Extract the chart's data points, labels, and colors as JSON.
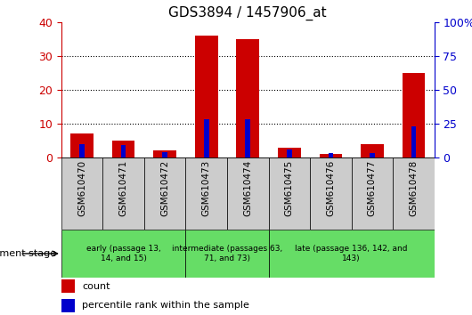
{
  "title": "GDS3894 / 1457906_at",
  "categories": [
    "GSM610470",
    "GSM610471",
    "GSM610472",
    "GSM610473",
    "GSM610474",
    "GSM610475",
    "GSM610476",
    "GSM610477",
    "GSM610478"
  ],
  "count_values": [
    7,
    5,
    2,
    36,
    35,
    3,
    1,
    4,
    25
  ],
  "percentile_values": [
    10,
    9,
    4,
    28,
    28,
    6,
    3,
    3,
    23
  ],
  "left_ylim": [
    0,
    40
  ],
  "right_ylim": [
    0,
    100
  ],
  "left_yticks": [
    0,
    10,
    20,
    30,
    40
  ],
  "right_yticks": [
    0,
    25,
    50,
    75,
    100
  ],
  "right_yticklabels": [
    "0",
    "25",
    "50",
    "75",
    "100%"
  ],
  "count_color": "#cc0000",
  "percentile_color": "#0000cc",
  "bar_bg_color": "#cccccc",
  "group_color": "#66dd66",
  "groups": [
    {
      "label": "early (passage 13,\n14, and 15)",
      "start": 0,
      "end": 2
    },
    {
      "label": "intermediate (passages 63,\n71, and 73)",
      "start": 3,
      "end": 4
    },
    {
      "label": "late (passage 136, 142, and\n143)",
      "start": 5,
      "end": 8
    }
  ],
  "legend_count_label": "count",
  "legend_percentile_label": "percentile rank within the sample",
  "dev_stage_label": "development stage",
  "bar_width": 0.55,
  "percentile_bar_width": 0.12
}
